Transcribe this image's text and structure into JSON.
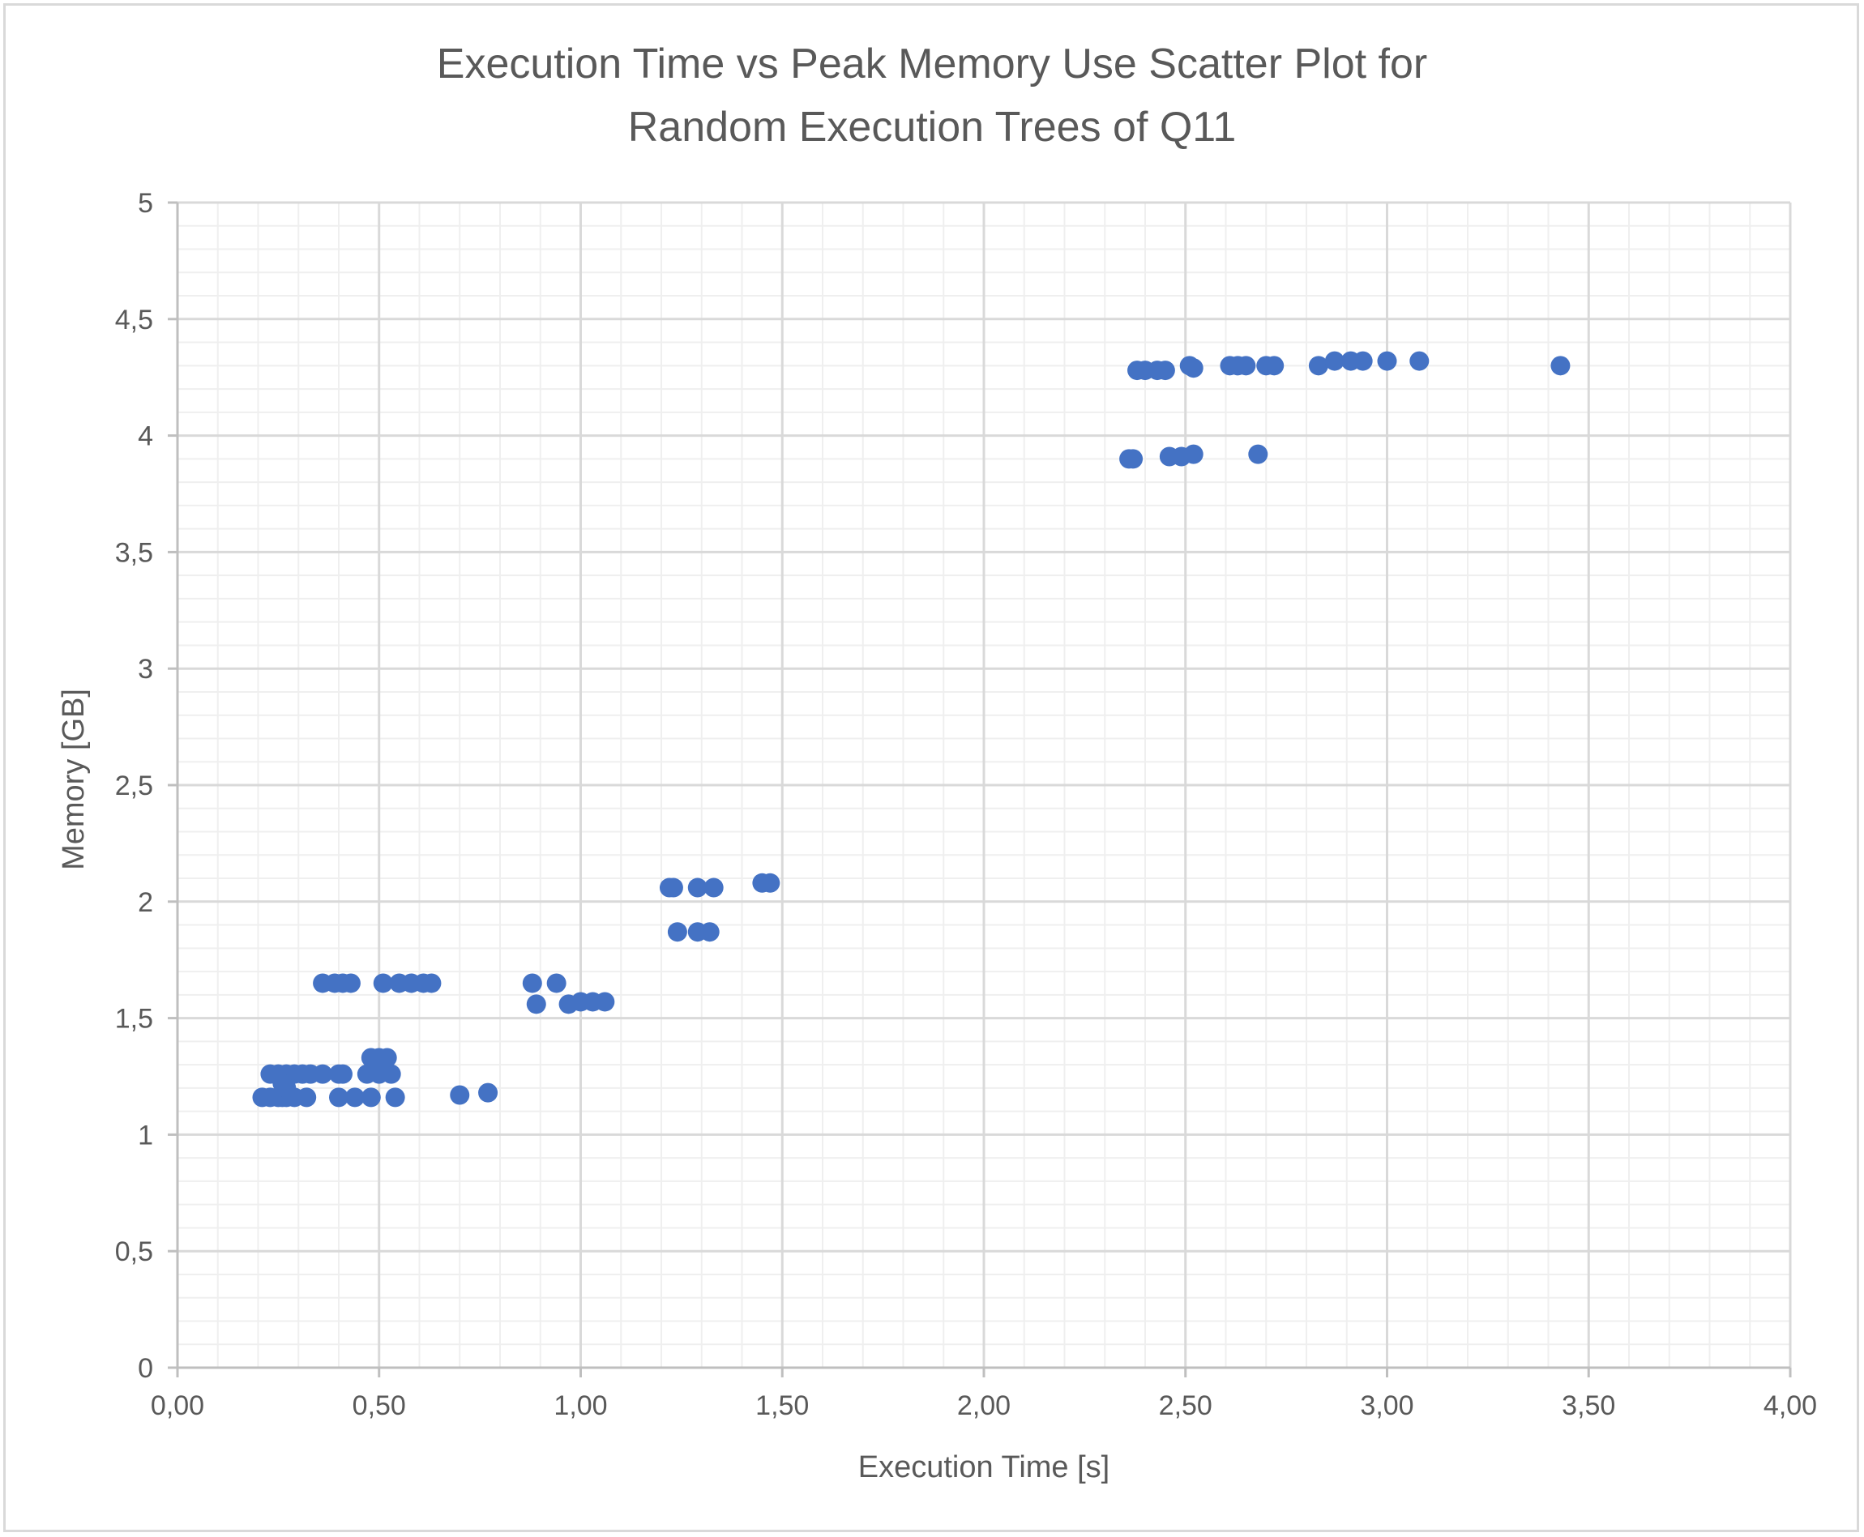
{
  "chart_data": {
    "type": "scatter",
    "title_line1": "Execution Time vs Peak Memory Use Scatter Plot for",
    "title_line2": "Random Execution Trees of Q11",
    "xlabel": "Execution Time [s]",
    "ylabel": "Memory [GB]",
    "xlim": [
      0,
      4
    ],
    "ylim": [
      0,
      5
    ],
    "x_ticks": [
      "0,00",
      "0,50",
      "1,00",
      "1,50",
      "2,00",
      "2,50",
      "3,00",
      "3,50",
      "4,00"
    ],
    "y_ticks": [
      "0",
      "0,5",
      "1",
      "1,5",
      "2",
      "2,5",
      "3",
      "3,5",
      "4",
      "4,5",
      "5"
    ],
    "x_tick_values": [
      0,
      0.5,
      1,
      1.5,
      2,
      2.5,
      3,
      3.5,
      4
    ],
    "y_tick_values": [
      0,
      0.5,
      1,
      1.5,
      2,
      2.5,
      3,
      3.5,
      4,
      4.5,
      5
    ],
    "grid": "major and minor",
    "legend": "none",
    "color": "#4472c4",
    "points": [
      [
        0.21,
        1.16
      ],
      [
        0.23,
        1.16
      ],
      [
        0.25,
        1.16
      ],
      [
        0.26,
        1.16
      ],
      [
        0.27,
        1.16
      ],
      [
        0.29,
        1.16
      ],
      [
        0.32,
        1.16
      ],
      [
        0.4,
        1.16
      ],
      [
        0.44,
        1.16
      ],
      [
        0.48,
        1.16
      ],
      [
        0.54,
        1.16
      ],
      [
        0.7,
        1.17
      ],
      [
        0.77,
        1.18
      ],
      [
        0.23,
        1.26
      ],
      [
        0.25,
        1.26
      ],
      [
        0.27,
        1.26
      ],
      [
        0.29,
        1.26
      ],
      [
        0.31,
        1.26
      ],
      [
        0.33,
        1.26
      ],
      [
        0.36,
        1.26
      ],
      [
        0.4,
        1.26
      ],
      [
        0.41,
        1.26
      ],
      [
        0.47,
        1.26
      ],
      [
        0.5,
        1.26
      ],
      [
        0.53,
        1.26
      ],
      [
        0.26,
        1.22
      ],
      [
        0.27,
        1.2
      ],
      [
        0.48,
        1.33
      ],
      [
        0.5,
        1.33
      ],
      [
        0.52,
        1.33
      ],
      [
        0.36,
        1.65
      ],
      [
        0.39,
        1.65
      ],
      [
        0.41,
        1.65
      ],
      [
        0.43,
        1.65
      ],
      [
        0.51,
        1.65
      ],
      [
        0.55,
        1.65
      ],
      [
        0.58,
        1.65
      ],
      [
        0.61,
        1.65
      ],
      [
        0.63,
        1.65
      ],
      [
        0.88,
        1.65
      ],
      [
        0.94,
        1.65
      ],
      [
        0.89,
        1.56
      ],
      [
        0.97,
        1.56
      ],
      [
        1.0,
        1.57
      ],
      [
        1.03,
        1.57
      ],
      [
        1.06,
        1.57
      ],
      [
        1.22,
        2.06
      ],
      [
        1.23,
        2.06
      ],
      [
        1.29,
        2.06
      ],
      [
        1.33,
        2.06
      ],
      [
        1.24,
        1.87
      ],
      [
        1.29,
        1.87
      ],
      [
        1.32,
        1.87
      ],
      [
        1.45,
        2.08
      ],
      [
        1.47,
        2.08
      ],
      [
        2.36,
        3.9
      ],
      [
        2.37,
        3.9
      ],
      [
        2.46,
        3.91
      ],
      [
        2.49,
        3.91
      ],
      [
        2.52,
        3.92
      ],
      [
        2.68,
        3.92
      ],
      [
        2.38,
        4.28
      ],
      [
        2.4,
        4.28
      ],
      [
        2.43,
        4.28
      ],
      [
        2.45,
        4.28
      ],
      [
        2.51,
        4.3
      ],
      [
        2.52,
        4.29
      ],
      [
        2.61,
        4.3
      ],
      [
        2.63,
        4.3
      ],
      [
        2.65,
        4.3
      ],
      [
        2.7,
        4.3
      ],
      [
        2.72,
        4.3
      ],
      [
        2.83,
        4.3
      ],
      [
        2.87,
        4.32
      ],
      [
        2.91,
        4.32
      ],
      [
        2.94,
        4.32
      ],
      [
        3.0,
        4.32
      ],
      [
        3.08,
        4.32
      ],
      [
        3.43,
        4.3
      ]
    ]
  }
}
